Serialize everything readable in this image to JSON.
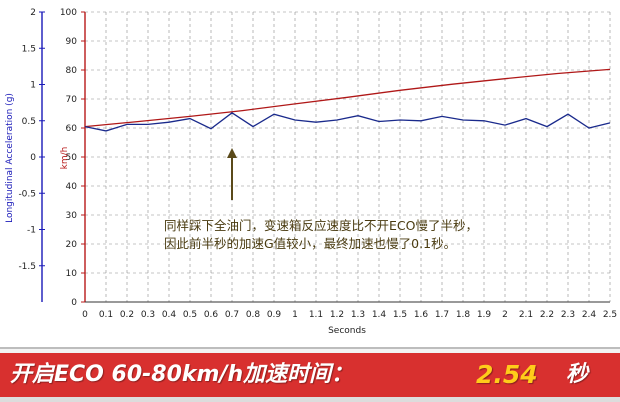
{
  "chart_data": {
    "type": "line",
    "xlabel": "Seconds",
    "ylabel_left": "Longitudinal Acceleration (g)",
    "ylabel_right": "km/h",
    "xlim": [
      0,
      2.5
    ],
    "x_ticks": [
      "0",
      "0.1",
      "0.2",
      "0.3",
      "0.4",
      "0.5",
      "0.6",
      "0.7",
      "0.8",
      "0.9",
      "1",
      "1.1",
      "1.2",
      "1.3",
      "1.4",
      "1.5",
      "1.6",
      "1.7",
      "1.8",
      "1.9",
      "2",
      "2.1",
      "2.2",
      "2.3",
      "2.4",
      "2.5"
    ],
    "ylim_left": [
      -2,
      2
    ],
    "left_ticks": [
      "2",
      "1.5",
      "1",
      "0.5",
      "0",
      "-0.5",
      "-1",
      "-1.5"
    ],
    "ylim_right": [
      0,
      100
    ],
    "right_ticks": [
      "100",
      "90",
      "80",
      "70",
      "60",
      "50",
      "40",
      "30",
      "20",
      "10",
      "0"
    ],
    "grid": true,
    "series": [
      {
        "axis": "right",
        "color": "#b01818",
        "x": [
          0,
          0.25,
          0.5,
          0.75,
          1.0,
          1.25,
          1.5,
          1.75,
          2.0,
          2.25,
          2.5
        ],
        "values": [
          60.5,
          62.2,
          64.0,
          66.0,
          68.3,
          70.6,
          73.0,
          75.1,
          77.0,
          78.8,
          80.2
        ]
      },
      {
        "axis": "left",
        "color": "#1a2a8c",
        "x": [
          0,
          0.1,
          0.2,
          0.3,
          0.4,
          0.5,
          0.6,
          0.7,
          0.8,
          0.9,
          1.0,
          1.1,
          1.2,
          1.3,
          1.4,
          1.5,
          1.6,
          1.7,
          1.8,
          1.9,
          2.0,
          2.1,
          2.2,
          2.3,
          2.4,
          2.5
        ],
        "values": [
          0.42,
          0.36,
          0.45,
          0.45,
          0.48,
          0.53,
          0.39,
          0.61,
          0.42,
          0.59,
          0.51,
          0.48,
          0.51,
          0.57,
          0.49,
          0.51,
          0.5,
          0.56,
          0.51,
          0.5,
          0.44,
          0.53,
          0.42,
          0.59,
          0.4,
          0.47
        ]
      }
    ],
    "annotation": {
      "line1": "同样踩下全油门，变速箱反应速度比不开ECO慢了半秒，",
      "line2": "因此前半秒的加速G值较小，最终加速也慢了0.1秒。",
      "arrow_x": 0.7
    }
  },
  "banner": {
    "title": "开启ECO 60-80km/h加速时间：",
    "value": "2.54",
    "unit": "秒"
  },
  "colors": {
    "left_axis": "#1a1ab8",
    "right_axis": "#b81a1a",
    "grid": "#8a8a8a",
    "banner_red": "#d8302f",
    "value_yellow": "#ffcc1a"
  }
}
